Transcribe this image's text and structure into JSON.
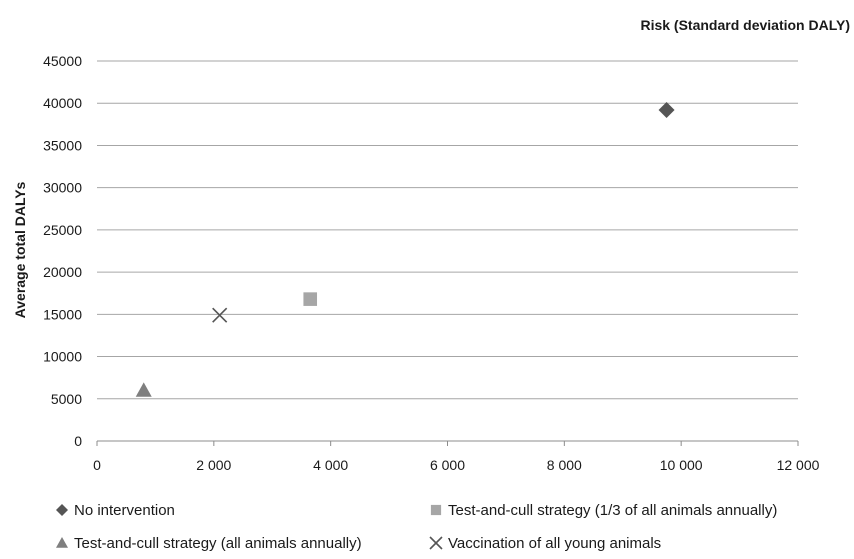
{
  "chart_data": {
    "type": "scatter",
    "title": "",
    "xlabel": "Risk (Standard deviation DALY)",
    "ylabel": "Average total DALYs",
    "xlim": [
      0,
      12000
    ],
    "ylim": [
      0,
      45000
    ],
    "x_ticks": [
      0,
      2000,
      4000,
      6000,
      8000,
      10000,
      12000
    ],
    "x_tick_labels": [
      "0",
      "2 000",
      "4 000",
      "6 000",
      "8 000",
      "10 000",
      "12 000"
    ],
    "y_ticks": [
      0,
      5000,
      10000,
      15000,
      20000,
      25000,
      30000,
      35000,
      40000,
      45000
    ],
    "y_tick_labels": [
      "0",
      "5000",
      "10000",
      "15000",
      "20000",
      "25000",
      "30000",
      "35000",
      "40000",
      "45000"
    ],
    "grid": "horizontal",
    "legend_position": "bottom",
    "series": [
      {
        "name": "No intervention",
        "marker": "diamond",
        "color": "#555555",
        "x": [
          9750
        ],
        "y": [
          39200
        ]
      },
      {
        "name": "Test-and-cull strategy (1/3 of all animals annually)",
        "marker": "square",
        "color": "#a6a6a6",
        "x": [
          3650
        ],
        "y": [
          16800
        ]
      },
      {
        "name": "Test-and-cull strategy (all animals annually)",
        "marker": "triangle",
        "color": "#7f7f7f",
        "x": [
          800
        ],
        "y": [
          6000
        ]
      },
      {
        "name": "Vaccination of all young animals",
        "marker": "cross",
        "color": "#555555",
        "x": [
          2100
        ],
        "y": [
          14900
        ]
      }
    ]
  }
}
